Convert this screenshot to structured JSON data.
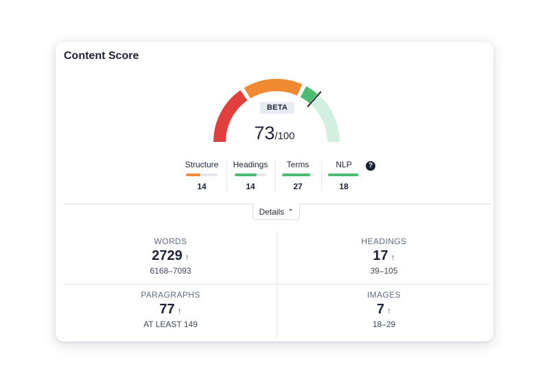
{
  "card": {
    "title": "Content Score"
  },
  "gauge": {
    "badge": "BETA",
    "score": "73",
    "max": "/100",
    "score_value": 73,
    "max_value": 100,
    "colors": {
      "red": "#e2403f",
      "orange": "#ef8a33",
      "green": "#4dbb72",
      "light_green": "#d3efe0",
      "needle": "#1b2235"
    }
  },
  "metrics": [
    {
      "label": "Structure",
      "value": "14",
      "fill": 0.45,
      "color": "#ef8a33"
    },
    {
      "label": "Headings",
      "value": "14",
      "fill": 0.7,
      "color": "#4dbb72"
    },
    {
      "label": "Terms",
      "value": "27",
      "fill": 0.9,
      "color": "#4dbb72"
    },
    {
      "label": "NLP",
      "value": "18",
      "fill": 0.95,
      "color": "#4dbb72"
    }
  ],
  "help": {
    "icon": "question-circle-icon",
    "glyph": "?"
  },
  "details": {
    "label": "Details",
    "icon": "chevron-up-icon",
    "glyph": "⌃"
  },
  "stats": {
    "words": {
      "label": "WORDS",
      "value": "2729",
      "arrow": "↑",
      "range": "6168–7093"
    },
    "headings": {
      "label": "HEADINGS",
      "value": "17",
      "arrow": "↑",
      "range": "39–105"
    },
    "paragraphs": {
      "label": "PARAGRAPHS",
      "value": "77",
      "arrow": "↑",
      "range": "AT LEAST 149"
    },
    "images": {
      "label": "IMAGES",
      "value": "7",
      "arrow": "↑",
      "range": "18–29"
    }
  }
}
